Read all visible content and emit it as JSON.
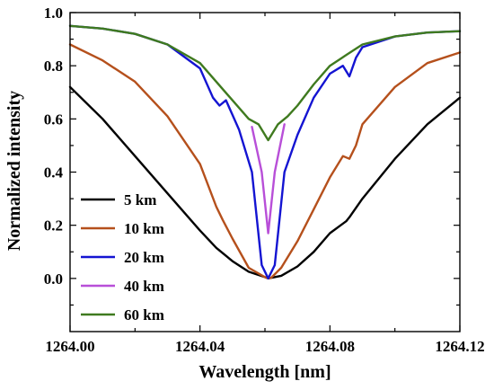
{
  "chart_data": {
    "type": "line",
    "xlabel": "Wavelength [nm]",
    "ylabel": "Normalized intensity",
    "xlim": [
      1264.0,
      1264.12
    ],
    "ylim": [
      -0.2,
      1.0
    ],
    "x_ticks": [
      "1264.00",
      "1264.04",
      "1264.08",
      "1264.12"
    ],
    "x_tick_values": [
      1264.0,
      1264.04,
      1264.08,
      1264.12
    ],
    "y_ticks": [
      "0.0",
      "0.2",
      "0.4",
      "0.6",
      "0.8",
      "1.0"
    ],
    "y_tick_values": [
      0.0,
      0.2,
      0.4,
      0.6,
      0.8,
      1.0
    ],
    "grid": false,
    "legend_position": "bottom-left",
    "series": [
      {
        "name": "5 km",
        "color": "#000000",
        "x": [
          1264.0,
          1264.01,
          1264.02,
          1264.03,
          1264.04,
          1264.045,
          1264.05,
          1264.055,
          1264.06,
          1264.061,
          1264.065,
          1264.07,
          1264.075,
          1264.08,
          1264.085,
          1264.086,
          1264.09,
          1264.1,
          1264.11,
          1264.12
        ],
        "y": [
          0.72,
          0.6,
          0.46,
          0.32,
          0.18,
          0.115,
          0.065,
          0.025,
          0.005,
          0.0,
          0.01,
          0.045,
          0.1,
          0.17,
          0.215,
          0.23,
          0.3,
          0.45,
          0.58,
          0.68
        ]
      },
      {
        "name": "10 km",
        "color": "#b5501c",
        "x": [
          1264.0,
          1264.01,
          1264.02,
          1264.03,
          1264.04,
          1264.045,
          1264.047,
          1264.05,
          1264.055,
          1264.06,
          1264.061,
          1264.062,
          1264.065,
          1264.07,
          1264.075,
          1264.08,
          1264.084,
          1264.086,
          1264.088,
          1264.09,
          1264.1,
          1264.11,
          1264.12
        ],
        "y": [
          0.88,
          0.82,
          0.74,
          0.61,
          0.43,
          0.27,
          0.22,
          0.15,
          0.04,
          0.005,
          0.0,
          0.003,
          0.04,
          0.14,
          0.26,
          0.38,
          0.46,
          0.45,
          0.5,
          0.58,
          0.72,
          0.81,
          0.85
        ]
      },
      {
        "name": "20 km",
        "color": "#1414d2",
        "x": [
          1264.0,
          1264.01,
          1264.02,
          1264.03,
          1264.04,
          1264.044,
          1264.046,
          1264.048,
          1264.052,
          1264.056,
          1264.059,
          1264.061,
          1264.063,
          1264.066,
          1264.07,
          1264.075,
          1264.08,
          1264.084,
          1264.086,
          1264.088,
          1264.09,
          1264.1,
          1264.11,
          1264.12
        ],
        "y": [
          0.95,
          0.94,
          0.92,
          0.88,
          0.79,
          0.68,
          0.65,
          0.67,
          0.56,
          0.4,
          0.05,
          0.0,
          0.05,
          0.4,
          0.54,
          0.68,
          0.77,
          0.8,
          0.76,
          0.83,
          0.87,
          0.91,
          0.925,
          0.93
        ]
      },
      {
        "name": "40 km",
        "color": "#b84fd8",
        "x": [
          1264.0,
          1264.01,
          1264.02,
          1264.03,
          1264.04,
          1264.05,
          1264.056,
          1264.059,
          1264.061,
          1264.063,
          1264.066,
          1264.07,
          1264.08,
          1264.09,
          1264.1,
          1264.11,
          1264.12
        ],
        "y": [
          0.95,
          0.94,
          0.92,
          0.88,
          0.8,
          0.67,
          0.57,
          0.4,
          0.17,
          0.4,
          0.58,
          0.63,
          0.79,
          0.88,
          0.91,
          0.925,
          0.93
        ],
        "note_visible_range": [
          1264.056,
          1264.066
        ]
      },
      {
        "name": "60 km",
        "color": "#3f7a1f",
        "x": [
          1264.0,
          1264.01,
          1264.02,
          1264.03,
          1264.04,
          1264.05,
          1264.055,
          1264.058,
          1264.061,
          1264.064,
          1264.067,
          1264.07,
          1264.075,
          1264.08,
          1264.085,
          1264.09,
          1264.1,
          1264.11,
          1264.12
        ],
        "y": [
          0.95,
          0.94,
          0.92,
          0.88,
          0.81,
          0.67,
          0.6,
          0.58,
          0.52,
          0.58,
          0.61,
          0.65,
          0.73,
          0.8,
          0.84,
          0.88,
          0.91,
          0.925,
          0.93
        ]
      }
    ]
  }
}
